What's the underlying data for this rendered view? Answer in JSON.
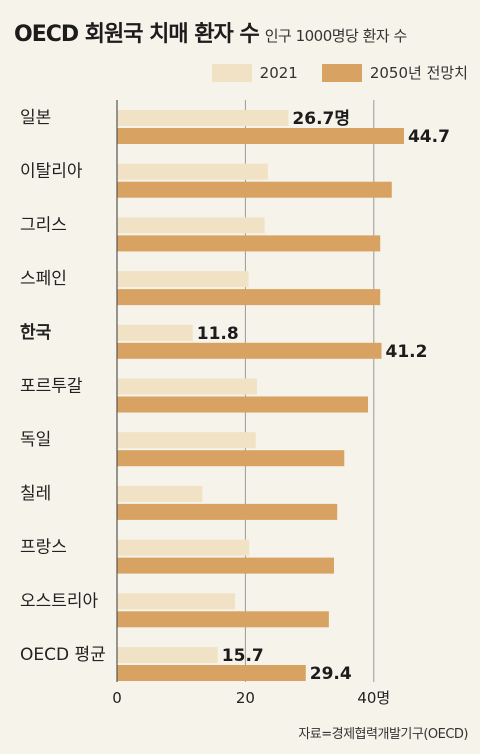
{
  "header": {
    "title": "OECD 회원국 치매 환자 수",
    "subtitle": "인구 1000명당 환자 수"
  },
  "source": "자료=경제협력개발기구(OECD)",
  "colors": {
    "series_2021": "#f1e2c6",
    "series_2050": "#d7a262",
    "grid": "#9a9a9a",
    "axis": "#555555",
    "text": "#222222"
  },
  "chart_data": {
    "type": "bar",
    "orientation": "horizontal",
    "categories": [
      "일본",
      "이탈리아",
      "그리스",
      "스페인",
      "한국",
      "포르투갈",
      "독일",
      "칠레",
      "프랑스",
      "오스트리아",
      "OECD 평균"
    ],
    "highlight_category": "한국",
    "series": [
      {
        "name": "2021",
        "values": [
          26.7,
          23.5,
          23.0,
          20.5,
          11.8,
          21.8,
          21.6,
          13.3,
          20.6,
          18.4,
          15.7
        ],
        "labels": [
          "26.7명",
          "",
          "",
          "",
          "11.8",
          "",
          "",
          "",
          "",
          "",
          "15.7"
        ]
      },
      {
        "name": "2050년 전망치",
        "values": [
          44.7,
          42.8,
          41.0,
          41.0,
          41.2,
          39.1,
          35.4,
          34.3,
          33.8,
          33.0,
          29.4
        ],
        "labels": [
          "44.7",
          "",
          "",
          "",
          "41.2",
          "",
          "",
          "",
          "",
          "",
          "29.4"
        ]
      }
    ],
    "x_ticks": [
      {
        "value": 0,
        "label": "0"
      },
      {
        "value": 20,
        "label": "20"
      },
      {
        "value": 40,
        "label": "40명"
      }
    ],
    "xlim": [
      0,
      50
    ],
    "grid": true,
    "legend_position": "top-right"
  }
}
